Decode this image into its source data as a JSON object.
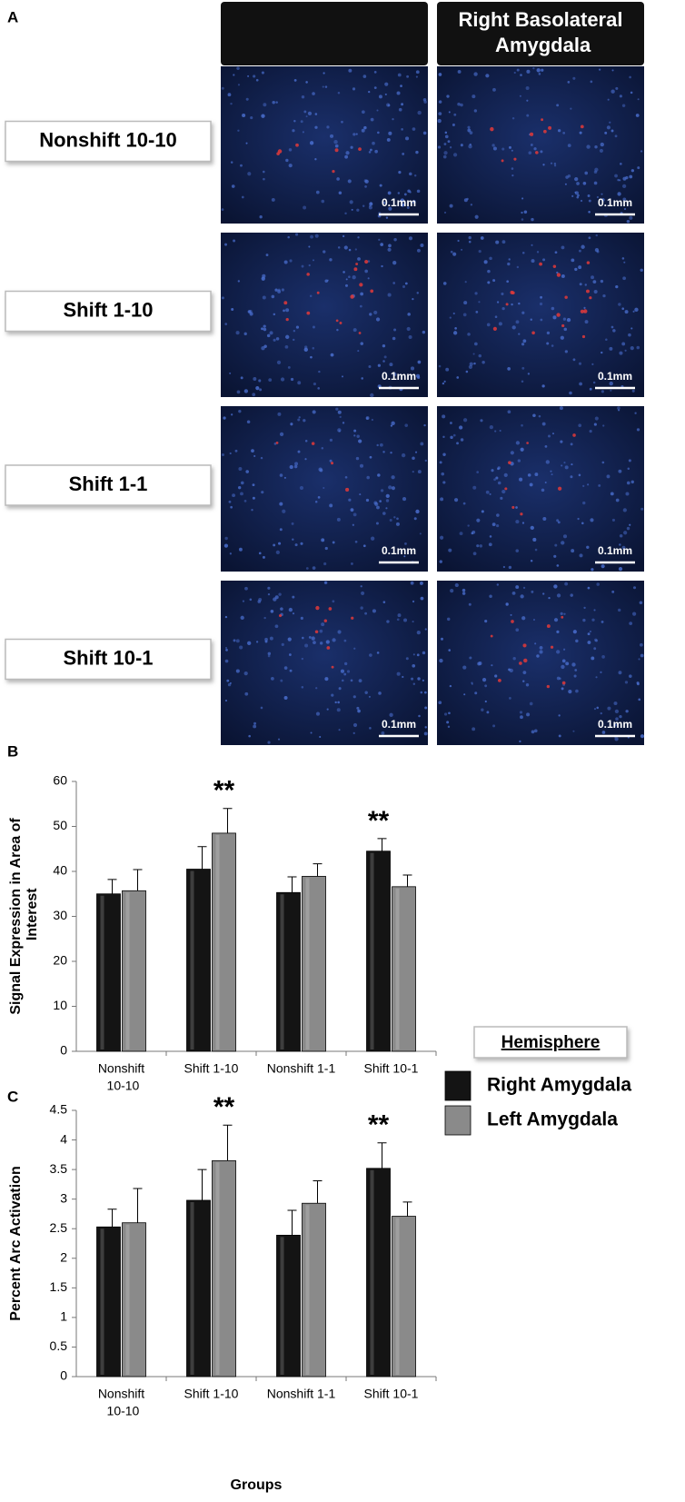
{
  "panel_a": {
    "label": "A",
    "column_header": "Right Basolateral Amygdala",
    "rows": [
      {
        "label": "Nonshift 10-10",
        "scale_bars": [
          "0.1mm",
          "0.1mm"
        ]
      },
      {
        "label": "Shift 1-10",
        "scale_bars": [
          "0.1mm",
          "0.1mm"
        ]
      },
      {
        "label": "Shift 1-1",
        "scale_bars": [
          "0.1mm",
          "0.1mm"
        ]
      },
      {
        "label": "Shift 10-1",
        "scale_bars": [
          "0.1mm",
          "0.1mm"
        ]
      }
    ]
  },
  "legend": {
    "title": "Hemisphere"
  },
  "chart_data": [
    {
      "type": "bar",
      "panel_label": "B",
      "y_label": "Signal Expression in Area of Interest",
      "categories": [
        "Nonshift 10-10",
        "Shift 1-10",
        "Nonshift 1-1",
        "Shift 10-1"
      ],
      "series": [
        {
          "name": "Right Amygdala",
          "color": "#141414",
          "values": [
            35,
            40.5,
            35.3,
            44.5
          ],
          "errors": [
            3.2,
            5,
            3.5,
            2.8
          ]
        },
        {
          "name": "Left Amygdala",
          "color": "#8a8a8a",
          "values": [
            35.7,
            48.5,
            38.9,
            36.6
          ],
          "errors": [
            4.7,
            5.5,
            2.8,
            2.6
          ]
        }
      ],
      "annotations": [
        {
          "text": "**",
          "category": 1,
          "series": 1
        },
        {
          "text": "**",
          "category": 3,
          "series": 0
        }
      ],
      "ylim": [
        0,
        60
      ],
      "yticks": [
        0,
        10,
        20,
        30,
        40,
        50,
        60
      ]
    },
    {
      "type": "bar",
      "panel_label": "C",
      "y_label": "Percent Arc Activation",
      "x_label": "Groups",
      "categories": [
        "Nonshift 10-10",
        "Shift 1-10",
        "Nonshift 1-1",
        "Shift 10-1"
      ],
      "series": [
        {
          "color": "#141414",
          "values": [
            2.53,
            2.98,
            2.39,
            3.52
          ],
          "errors": [
            0.3,
            0.52,
            0.42,
            0.43
          ]
        },
        {
          "color": "#8a8a8a",
          "values": [
            2.6,
            3.65,
            2.93,
            2.71
          ],
          "errors": [
            0.58,
            0.6,
            0.38,
            0.24
          ]
        }
      ],
      "annotations": [
        {
          "text": "**",
          "category": 1,
          "series": 1
        },
        {
          "text": "**",
          "category": 3,
          "series": 0
        }
      ],
      "ylim": [
        0,
        4.5
      ],
      "yticks": [
        0,
        0.5,
        1,
        1.5,
        2,
        2.5,
        3,
        3.5,
        4,
        4.5
      ]
    }
  ]
}
